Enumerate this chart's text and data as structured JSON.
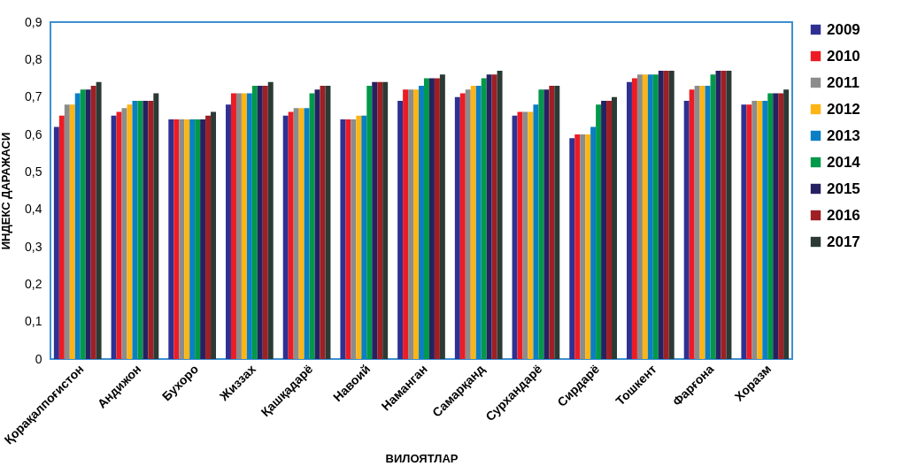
{
  "chart_data": {
    "type": "bar",
    "xlabel": "ВИЛОЯТЛАР",
    "ylabel": "ИНДЕКС ДАРАЖАСИ",
    "categories": [
      "Қорақалпоғистон",
      "Андижон",
      "Бухоро",
      "Жиззах",
      "Қашқадарё",
      "Навоий",
      "Наманган",
      "Самарқанд",
      "Сурхандарё",
      "Сирдарё",
      "Тошкент",
      "Фарғона",
      "Хоразм"
    ],
    "series": [
      {
        "name": "2009",
        "color": "#2e3192",
        "values": [
          0.62,
          0.65,
          0.64,
          0.68,
          0.65,
          0.64,
          0.69,
          0.7,
          0.65,
          0.59,
          0.74,
          0.69,
          0.68
        ]
      },
      {
        "name": "2010",
        "color": "#ed1c24",
        "values": [
          0.65,
          0.66,
          0.64,
          0.71,
          0.66,
          0.64,
          0.72,
          0.71,
          0.66,
          0.6,
          0.75,
          0.72,
          0.68
        ]
      },
      {
        "name": "2011",
        "color": "#8c8c8c",
        "values": [
          0.68,
          0.67,
          0.64,
          0.71,
          0.67,
          0.64,
          0.72,
          0.72,
          0.66,
          0.6,
          0.76,
          0.73,
          0.69
        ]
      },
      {
        "name": "2012",
        "color": "#fdb515",
        "values": [
          0.68,
          0.68,
          0.64,
          0.71,
          0.67,
          0.65,
          0.72,
          0.73,
          0.66,
          0.6,
          0.76,
          0.73,
          0.69
        ]
      },
      {
        "name": "2013",
        "color": "#0a7fc4",
        "values": [
          0.71,
          0.69,
          0.64,
          0.71,
          0.67,
          0.65,
          0.73,
          0.73,
          0.68,
          0.62,
          0.76,
          0.73,
          0.69
        ]
      },
      {
        "name": "2014",
        "color": "#00994a",
        "values": [
          0.72,
          0.69,
          0.64,
          0.73,
          0.71,
          0.73,
          0.75,
          0.75,
          0.72,
          0.68,
          0.76,
          0.76,
          0.71
        ]
      },
      {
        "name": "2015",
        "color": "#262262",
        "values": [
          0.72,
          0.69,
          0.64,
          0.73,
          0.72,
          0.74,
          0.75,
          0.76,
          0.72,
          0.69,
          0.77,
          0.77,
          0.71
        ]
      },
      {
        "name": "2016",
        "color": "#9e1f24",
        "values": [
          0.73,
          0.69,
          0.65,
          0.73,
          0.73,
          0.74,
          0.75,
          0.76,
          0.73,
          0.69,
          0.77,
          0.77,
          0.71
        ]
      },
      {
        "name": "2017",
        "color": "#2b3a35",
        "values": [
          0.74,
          0.71,
          0.66,
          0.74,
          0.73,
          0.74,
          0.76,
          0.77,
          0.73,
          0.7,
          0.77,
          0.77,
          0.72
        ]
      }
    ],
    "ylim": [
      0,
      0.9
    ],
    "yticks": [
      0,
      {
        "value": 0.1,
        "label": "0,1"
      },
      {
        "value": 0.2,
        "label": "0,2"
      },
      {
        "value": 0.3,
        "label": "0,3"
      },
      {
        "value": 0.4,
        "label": "0,4"
      },
      {
        "value": 0.5,
        "label": "0,5"
      },
      {
        "value": 0.6,
        "label": "0,6"
      },
      {
        "value": 0.7,
        "label": "0,7"
      },
      {
        "value": 0.8,
        "label": "0,8"
      },
      {
        "value": 0.9,
        "label": "0,9"
      }
    ],
    "legend": "right",
    "grid": false
  }
}
